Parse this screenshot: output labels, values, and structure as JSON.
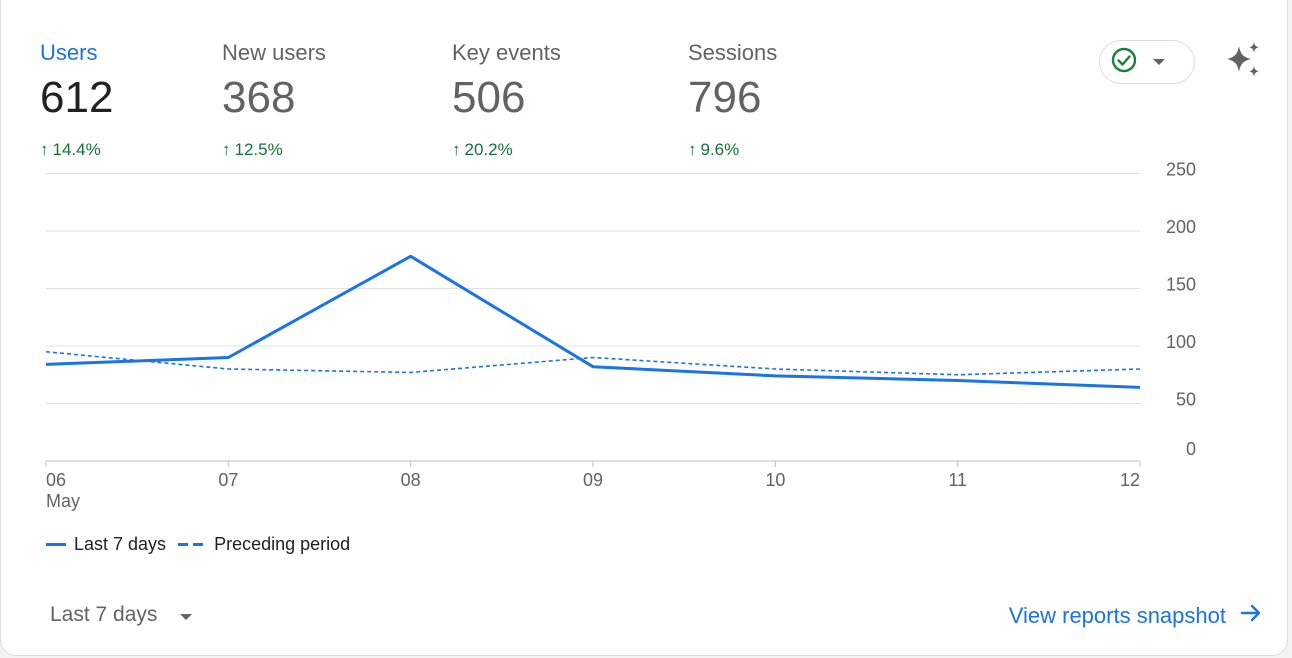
{
  "metrics": [
    {
      "label": "Users",
      "value": "612",
      "change": "14.4%"
    },
    {
      "label": "New users",
      "value": "368",
      "change": "12.5%"
    },
    {
      "label": "Key events",
      "value": "506",
      "change": "20.2%"
    },
    {
      "label": "Sessions",
      "value": "796",
      "change": "9.6%"
    }
  ],
  "legend": {
    "current": "Last 7 days",
    "previous": "Preceding period"
  },
  "footer": {
    "date_range": "Last 7 days",
    "view_link": "View reports snapshot"
  },
  "colors": {
    "accent": "#1a73e8",
    "positive": "#137333",
    "status_green": "#188038"
  },
  "icons": {
    "status": "check-circle-icon",
    "dropdown": "caret-down-icon",
    "insights": "sparkle-icon",
    "link_arrow": "arrow-right-icon",
    "change": "arrow-up-icon"
  },
  "chart_data": {
    "type": "line",
    "x": [
      "06",
      "07",
      "08",
      "09",
      "10",
      "11",
      "12"
    ],
    "x_sublabel": "May",
    "y_ticks": [
      "250",
      "200",
      "150",
      "100",
      "50",
      "0"
    ],
    "y_tick_values": [
      250,
      200,
      150,
      100,
      50,
      0
    ],
    "ylim": [
      0,
      250
    ],
    "grid": true,
    "legend_position": "bottom-left",
    "series": [
      {
        "name": "Last 7 days",
        "style": "solid",
        "values": [
          84,
          90,
          178,
          82,
          74,
          70,
          64
        ]
      },
      {
        "name": "Preceding period",
        "style": "dashed",
        "values": [
          95,
          80,
          77,
          90,
          80,
          75,
          80
        ]
      }
    ]
  }
}
